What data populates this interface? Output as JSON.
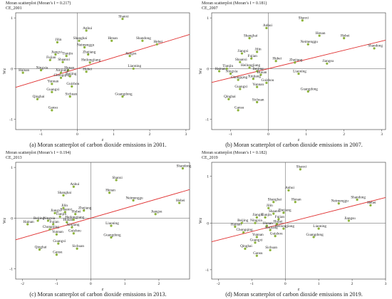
{
  "chart_data": [
    {
      "type": "scatter",
      "title": "Moran scatterplot (Moran’s I = 0.217)",
      "subtitle": "CE_2001",
      "caption": "(a)  Moran scatterplot of carbon dioxide emissions in 2001.",
      "xlabel": "z",
      "ylabel": "Wz",
      "xlim": [
        -1.7,
        3.1
      ],
      "ylim": [
        -1.2,
        1.1
      ],
      "xticks": [
        -1,
        0,
        1,
        2,
        3
      ],
      "yticks": [
        -1,
        0,
        1
      ],
      "slope": 0.217,
      "point_color": "#8cb33a",
      "line_color": "#e03030",
      "points": [
        {
          "label": "Shanxi",
          "x": 1.25,
          "y": 0.98
        },
        {
          "label": "Anhui",
          "x": 0.25,
          "y": 0.75
        },
        {
          "label": "Shanghai",
          "x": 0.05,
          "y": 0.55
        },
        {
          "label": "Jilin",
          "x": -0.55,
          "y": 0.52
        },
        {
          "label": "Henan",
          "x": 0.95,
          "y": 0.55
        },
        {
          "label": "Shandong",
          "x": 1.8,
          "y": 0.55
        },
        {
          "label": "Hebei",
          "x": 2.2,
          "y": 0.48
        },
        {
          "label": "Neimenggu",
          "x": 0.2,
          "y": 0.42
        },
        {
          "label": "Jiangxi",
          "x": -0.6,
          "y": 0.28
        },
        {
          "label": "Tianjin",
          "x": -0.3,
          "y": 0.25
        },
        {
          "label": "Zhejiang",
          "x": 0.3,
          "y": 0.28
        },
        {
          "label": "Jiangsu",
          "x": 1.45,
          "y": 0.25
        },
        {
          "label": "Fujian",
          "x": -0.75,
          "y": 0.17
        },
        {
          "label": "Shaanxi",
          "x": -0.4,
          "y": 0.13
        },
        {
          "label": "Heilongjiang",
          "x": 0.35,
          "y": 0.12
        },
        {
          "label": "Hunan",
          "x": -0.25,
          "y": -0.03
        },
        {
          "label": "Ningxia",
          "x": -1.0,
          "y": -0.03
        },
        {
          "label": "Xinjiang",
          "x": -0.45,
          "y": -0.08
        },
        {
          "label": "Hainan",
          "x": -1.5,
          "y": -0.08
        },
        {
          "label": "Hubei",
          "x": 0.25,
          "y": -0.06
        },
        {
          "label": "Chongqing",
          "x": -0.45,
          "y": -0.18
        },
        {
          "label": "Beijing",
          "x": -0.2,
          "y": -0.15
        },
        {
          "label": "Liaoning",
          "x": 1.55,
          "y": 0.0
        },
        {
          "label": "Yunnan",
          "x": -0.7,
          "y": -0.3
        },
        {
          "label": "Guizhou",
          "x": -0.15,
          "y": -0.35
        },
        {
          "label": "Guangxi",
          "x": -0.7,
          "y": -0.46
        },
        {
          "label": "Qinghai",
          "x": -1.1,
          "y": -0.6
        },
        {
          "label": "Sichuan",
          "x": -0.2,
          "y": -0.55
        },
        {
          "label": "Guangdong",
          "x": 1.25,
          "y": -0.55
        },
        {
          "label": "Gansu",
          "x": -0.7,
          "y": -0.82
        }
      ]
    },
    {
      "type": "scatter",
      "title": "Moran scatterplot (Moran’s I = 0.181)",
      "subtitle": "CE_2007",
      "caption": "(b)  Moran scatterplot of carbon dioxide emissions in 2007.",
      "xlabel": "z",
      "ylabel": "Wz",
      "xlim": [
        -1.5,
        3.1
      ],
      "ylim": [
        -1.2,
        1.1
      ],
      "xticks": [
        -1,
        0,
        1,
        2,
        3
      ],
      "yticks": [
        -1,
        0,
        1
      ],
      "slope": 0.181,
      "point_color": "#8cb33a",
      "line_color": "#e03030",
      "points": [
        {
          "label": "Shanxi",
          "x": 0.9,
          "y": 0.95
        },
        {
          "label": "Anhui",
          "x": -0.05,
          "y": 0.8
        },
        {
          "label": "Henan",
          "x": 1.35,
          "y": 0.65
        },
        {
          "label": "Hebei",
          "x": 2.0,
          "y": 0.6
        },
        {
          "label": "Shanghai",
          "x": -0.5,
          "y": 0.6
        },
        {
          "label": "Neimenggu",
          "x": 1.05,
          "y": 0.48
        },
        {
          "label": "Shandong",
          "x": 2.8,
          "y": 0.4
        },
        {
          "label": "Jiangxi",
          "x": -0.7,
          "y": 0.3
        },
        {
          "label": "Jilin",
          "x": -0.3,
          "y": 0.33
        },
        {
          "label": "Fujian",
          "x": -0.45,
          "y": 0.2
        },
        {
          "label": "Shaanxi",
          "x": -0.75,
          "y": 0.13
        },
        {
          "label": "Hubei",
          "x": 0.2,
          "y": 0.15
        },
        {
          "label": "Zhejiang",
          "x": 0.7,
          "y": 0.12
        },
        {
          "label": "Jiangsu",
          "x": 1.55,
          "y": 0.1
        },
        {
          "label": "Heilongjiang",
          "x": -0.5,
          "y": 0.02
        },
        {
          "label": "Tianjin",
          "x": -1.1,
          "y": 0.0
        },
        {
          "label": "Beijing",
          "x": -0.3,
          "y": -0.05
        },
        {
          "label": "Hainan",
          "x": -1.3,
          "y": -0.05
        },
        {
          "label": "Ningxia",
          "x": -1.0,
          "y": -0.1
        },
        {
          "label": "Hunan",
          "x": -0.2,
          "y": -0.12
        },
        {
          "label": "Liaoning",
          "x": 0.8,
          "y": -0.1
        },
        {
          "label": "Chongqing",
          "x": -0.8,
          "y": -0.22
        },
        {
          "label": "Xinjiang",
          "x": -0.4,
          "y": -0.2
        },
        {
          "label": "Guizhou",
          "x": -0.05,
          "y": -0.28
        },
        {
          "label": "Guangxi",
          "x": -0.75,
          "y": -0.4
        },
        {
          "label": "Yunnan",
          "x": -0.3,
          "y": -0.36
        },
        {
          "label": "Guangdong",
          "x": 1.05,
          "y": -0.45
        },
        {
          "label": "Qinghai",
          "x": -1.05,
          "y": -0.6
        },
        {
          "label": "Sichuan",
          "x": -0.3,
          "y": -0.66
        },
        {
          "label": "Gansu",
          "x": -0.8,
          "y": -0.82
        }
      ]
    },
    {
      "type": "scatter",
      "title": "Moran scatterplot (Moran’s I = 0.194)",
      "subtitle": "CE_2013",
      "caption": "(c)  Moran scatterplot of carbon dioxide emissions in 2013.",
      "xlabel": "z",
      "ylabel": "Wz",
      "xlim": [
        -2.2,
        2.9
      ],
      "ylim": [
        -1.2,
        1.1
      ],
      "xticks": [
        -2,
        -1,
        0,
        1,
        2
      ],
      "yticks": [
        -1,
        0,
        1
      ],
      "slope": 0.194,
      "point_color": "#8cb33a",
      "line_color": "#e03030",
      "points": [
        {
          "label": "Shandong",
          "x": 2.7,
          "y": 0.98
        },
        {
          "label": "Shanxi",
          "x": 0.75,
          "y": 0.75
        },
        {
          "label": "Anhui",
          "x": -0.5,
          "y": 0.62
        },
        {
          "label": "Henan",
          "x": 0.55,
          "y": 0.5
        },
        {
          "label": "Shanghai",
          "x": -0.8,
          "y": 0.45
        },
        {
          "label": "Neimenggu",
          "x": 1.25,
          "y": 0.35
        },
        {
          "label": "Hebei",
          "x": 2.6,
          "y": 0.3
        },
        {
          "label": "Jiangxi",
          "x": -1.05,
          "y": 0.1
        },
        {
          "label": "Shaanxi",
          "x": -0.75,
          "y": 0.12
        },
        {
          "label": "Zhejiang",
          "x": -0.2,
          "y": 0.15
        },
        {
          "label": "Jilin",
          "x": -0.8,
          "y": 0.2
        },
        {
          "label": "Hubei",
          "x": -0.45,
          "y": 0.08
        },
        {
          "label": "Jiangsu",
          "x": 1.9,
          "y": 0.08
        },
        {
          "label": "Tianjin",
          "x": -0.9,
          "y": 0.03
        },
        {
          "label": "Beijing",
          "x": -1.55,
          "y": -0.05
        },
        {
          "label": "Ningxia",
          "x": -1.25,
          "y": -0.05
        },
        {
          "label": "Hainan",
          "x": -1.85,
          "y": -0.12
        },
        {
          "label": "Heilongjiang",
          "x": -0.5,
          "y": -0.03
        },
        {
          "label": "Fujian",
          "x": -1.1,
          "y": -0.12
        },
        {
          "label": "Hunan",
          "x": -0.7,
          "y": -0.08
        },
        {
          "label": "Chongqing",
          "x": -1.2,
          "y": -0.22
        },
        {
          "label": "Xinjiang",
          "x": -0.55,
          "y": -0.18
        },
        {
          "label": "Liaoning",
          "x": 0.6,
          "y": -0.15
        },
        {
          "label": "Yunnan",
          "x": -1.0,
          "y": -0.32
        },
        {
          "label": "Guizhou",
          "x": -0.5,
          "y": -0.3
        },
        {
          "label": "Guangdong",
          "x": 0.6,
          "y": -0.38
        },
        {
          "label": "Guangxi",
          "x": -0.95,
          "y": -0.5
        },
        {
          "label": "Qinghai",
          "x": -1.5,
          "y": -0.62
        },
        {
          "label": "Sichuan",
          "x": -0.4,
          "y": -0.6
        },
        {
          "label": "Gansu",
          "x": -1.0,
          "y": -0.72
        }
      ]
    },
    {
      "type": "scatter",
      "title": "Moran scatterplot (Moran’s I = 0.182)",
      "subtitle": "CE_2019",
      "caption": "(d)  Moran scatterplot of carbon dioxide emissions in 2019.",
      "xlabel": "z",
      "ylabel": "Wz",
      "xlim": [
        -2.2,
        3.0
      ],
      "ylim": [
        -1.2,
        1.3
      ],
      "xticks": [
        -2,
        -1,
        0,
        1,
        2,
        3
      ],
      "yticks": [
        -1,
        0,
        1
      ],
      "slope": 0.182,
      "point_color": "#8cb33a",
      "line_color": "#e03030",
      "points": [
        {
          "label": "Shanxi",
          "x": 0.45,
          "y": 1.15
        },
        {
          "label": "Anhui",
          "x": 0.1,
          "y": 0.7
        },
        {
          "label": "Shanghai",
          "x": -0.35,
          "y": 0.45
        },
        {
          "label": "Henan",
          "x": 0.3,
          "y": 0.45
        },
        {
          "label": "Shandong",
          "x": 2.15,
          "y": 0.5
        },
        {
          "label": "Neimenggu",
          "x": 1.6,
          "y": 0.42
        },
        {
          "label": "Hebei",
          "x": 2.55,
          "y": 0.38
        },
        {
          "label": "Jilin",
          "x": -0.5,
          "y": 0.32
        },
        {
          "label": "Shaanxi",
          "x": -0.35,
          "y": 0.2
        },
        {
          "label": "Zhejiang",
          "x": -0.05,
          "y": 0.22
        },
        {
          "label": "Jiangsu",
          "x": 1.9,
          "y": 0.05
        },
        {
          "label": "Jiangxi",
          "x": -0.85,
          "y": 0.12
        },
        {
          "label": "Tianjin",
          "x": -0.6,
          "y": 0.12
        },
        {
          "label": "Fujian",
          "x": -0.2,
          "y": 0.08
        },
        {
          "label": "Beijing",
          "x": -1.3,
          "y": 0.0
        },
        {
          "label": "Ningxia",
          "x": -0.9,
          "y": 0.0
        },
        {
          "label": "Hubei",
          "x": -0.25,
          "y": -0.02
        },
        {
          "label": "Hainan",
          "x": -1.5,
          "y": -0.08
        },
        {
          "label": "Hunan",
          "x": -0.55,
          "y": -0.06
        },
        {
          "label": "Heilongjiang",
          "x": -0.05,
          "y": -0.12
        },
        {
          "label": "Chongqing",
          "x": -1.25,
          "y": -0.2
        },
        {
          "label": "Xinjiang",
          "x": -0.45,
          "y": -0.15
        },
        {
          "label": "Liaoning",
          "x": 1.0,
          "y": -0.12
        },
        {
          "label": "Guizhou",
          "x": -0.3,
          "y": -0.28
        },
        {
          "label": "Yunnan",
          "x": -0.85,
          "y": -0.3
        },
        {
          "label": "Guangdong",
          "x": 0.85,
          "y": -0.3
        },
        {
          "label": "Guangxi",
          "x": -0.9,
          "y": -0.42
        },
        {
          "label": "Qinghai",
          "x": -1.2,
          "y": -0.55
        },
        {
          "label": "Sichuan",
          "x": -0.45,
          "y": -0.58
        },
        {
          "label": "Gansu",
          "x": -0.85,
          "y": -0.7
        }
      ]
    }
  ]
}
